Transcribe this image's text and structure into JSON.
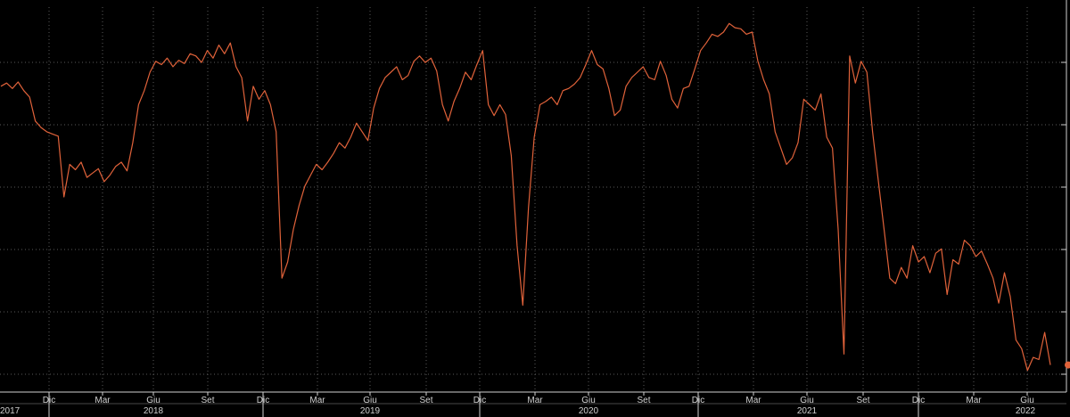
{
  "chart_data": {
    "type": "line",
    "title": "",
    "xlabel": "",
    "ylabel": "",
    "grid": true,
    "y_tick_labels_visible": false,
    "colors": {
      "background": "#000000",
      "series": "#e0623a",
      "grid": "#5a5a5a",
      "text": "#d0d0d0"
    },
    "month_ticks": [
      "Dic",
      "Mar",
      "Giu",
      "Set",
      "Dic",
      "Mar",
      "Giu",
      "Set",
      "Dic",
      "Mar",
      "Giu",
      "Set",
      "Dic",
      "Mar",
      "Giu",
      "Set",
      "Dic",
      "Mar",
      "Giu"
    ],
    "year_labels": [
      "2017",
      "2018",
      "2019",
      "2020",
      "2021",
      "2022"
    ],
    "end_marker": true,
    "series": [
      {
        "values": [
          0.22,
          0.25,
          0.2,
          0.26,
          0.18,
          0.12,
          -0.1,
          -0.16,
          -0.2,
          -0.22,
          -0.24,
          -0.8,
          -0.5,
          -0.55,
          -0.48,
          -0.62,
          -0.58,
          -0.54,
          -0.66,
          -0.6,
          -0.52,
          -0.48,
          -0.56,
          -0.3,
          0.05,
          0.18,
          0.35,
          0.45,
          0.42,
          0.48,
          0.4,
          0.46,
          0.43,
          0.52,
          0.5,
          0.44,
          0.55,
          0.48,
          0.6,
          0.52,
          0.62,
          0.4,
          0.3,
          -0.1,
          0.22,
          0.1,
          0.18,
          0.05,
          -0.2,
          -1.55,
          -1.4,
          -1.1,
          -0.88,
          -0.7,
          -0.6,
          -0.5,
          -0.55,
          -0.48,
          -0.4,
          -0.3,
          -0.35,
          -0.25,
          -0.12,
          -0.2,
          -0.28,
          0.02,
          0.2,
          0.3,
          0.35,
          0.4,
          0.28,
          0.32,
          0.45,
          0.5,
          0.44,
          0.48,
          0.36,
          0.05,
          -0.1,
          0.08,
          0.2,
          0.35,
          0.28,
          0.42,
          0.55,
          0.05,
          -0.05,
          0.05,
          -0.04,
          -0.42,
          -1.25,
          -1.8,
          -0.9,
          -0.25,
          0.05,
          0.08,
          0.12,
          0.05,
          0.18,
          0.2,
          0.24,
          0.3,
          0.42,
          0.55,
          0.42,
          0.38,
          0.2,
          -0.05,
          0.0,
          0.22,
          0.3,
          0.35,
          0.4,
          0.3,
          0.28,
          0.45,
          0.32,
          0.1,
          0.02,
          0.2,
          0.22,
          0.38,
          0.55,
          0.62,
          0.7,
          0.68,
          0.72,
          0.8,
          0.76,
          0.75,
          0.7,
          0.72,
          0.45,
          0.28,
          0.15,
          -0.2,
          -0.35,
          -0.5,
          -0.44,
          -0.3,
          0.1,
          0.05,
          0.0,
          0.15,
          -0.25,
          -0.35,
          -1.1,
          -2.25,
          0.5,
          0.25,
          0.45,
          0.35,
          -0.2,
          -0.65,
          -1.1,
          -1.55,
          -1.6,
          -1.45,
          -1.55,
          -1.25,
          -1.4,
          -1.35,
          -1.5,
          -1.32,
          -1.28,
          -1.7,
          -1.38,
          -1.42,
          -1.2,
          -1.25,
          -1.35,
          -1.3,
          -1.42,
          -1.55,
          -1.78,
          -1.5,
          -1.72,
          -2.12,
          -2.2,
          -2.4,
          -2.28,
          -2.3,
          -2.05,
          -2.35
        ]
      }
    ]
  }
}
